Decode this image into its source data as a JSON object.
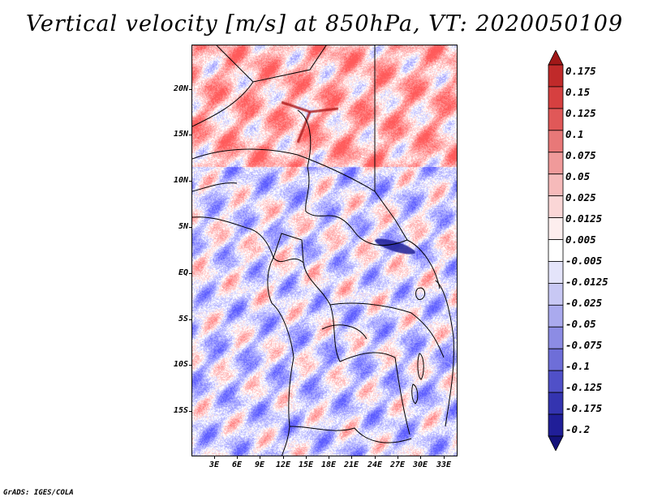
{
  "title": "Vertical velocity [m/s] at 850hPa, VT: 2020050109",
  "credit": "GrADS: IGES/COLA",
  "map": {
    "lat_labels": [
      "20N",
      "15N",
      "10N",
      "5N",
      "EQ",
      "5S",
      "10S",
      "15S"
    ],
    "lon_labels": [
      "3E",
      "6E",
      "9E",
      "12E",
      "15E",
      "18E",
      "21E",
      "24E",
      "27E",
      "30E",
      "33E"
    ],
    "field": "vertical velocity at 850hPa"
  },
  "colorbar": {
    "labels": [
      "0.175",
      "0.15",
      "0.125",
      "0.1",
      "0.075",
      "0.05",
      "0.025",
      "0.0125",
      "0.005",
      "-0.005",
      "-0.0125",
      "-0.025",
      "-0.05",
      "-0.075",
      "-0.1",
      "-0.125",
      "-0.175",
      "-0.2"
    ],
    "colors": [
      "#a01818",
      "#c02a2a",
      "#d64040",
      "#e05858",
      "#e87878",
      "#f09a9a",
      "#f6baba",
      "#fad6d6",
      "#fdeeee",
      "#ffffff",
      "#e4e4fa",
      "#c8c8f4",
      "#aaaaee",
      "#8c8ce4",
      "#6e6ed8",
      "#5050c8",
      "#3434b0",
      "#201e98",
      "#14127a"
    ]
  }
}
